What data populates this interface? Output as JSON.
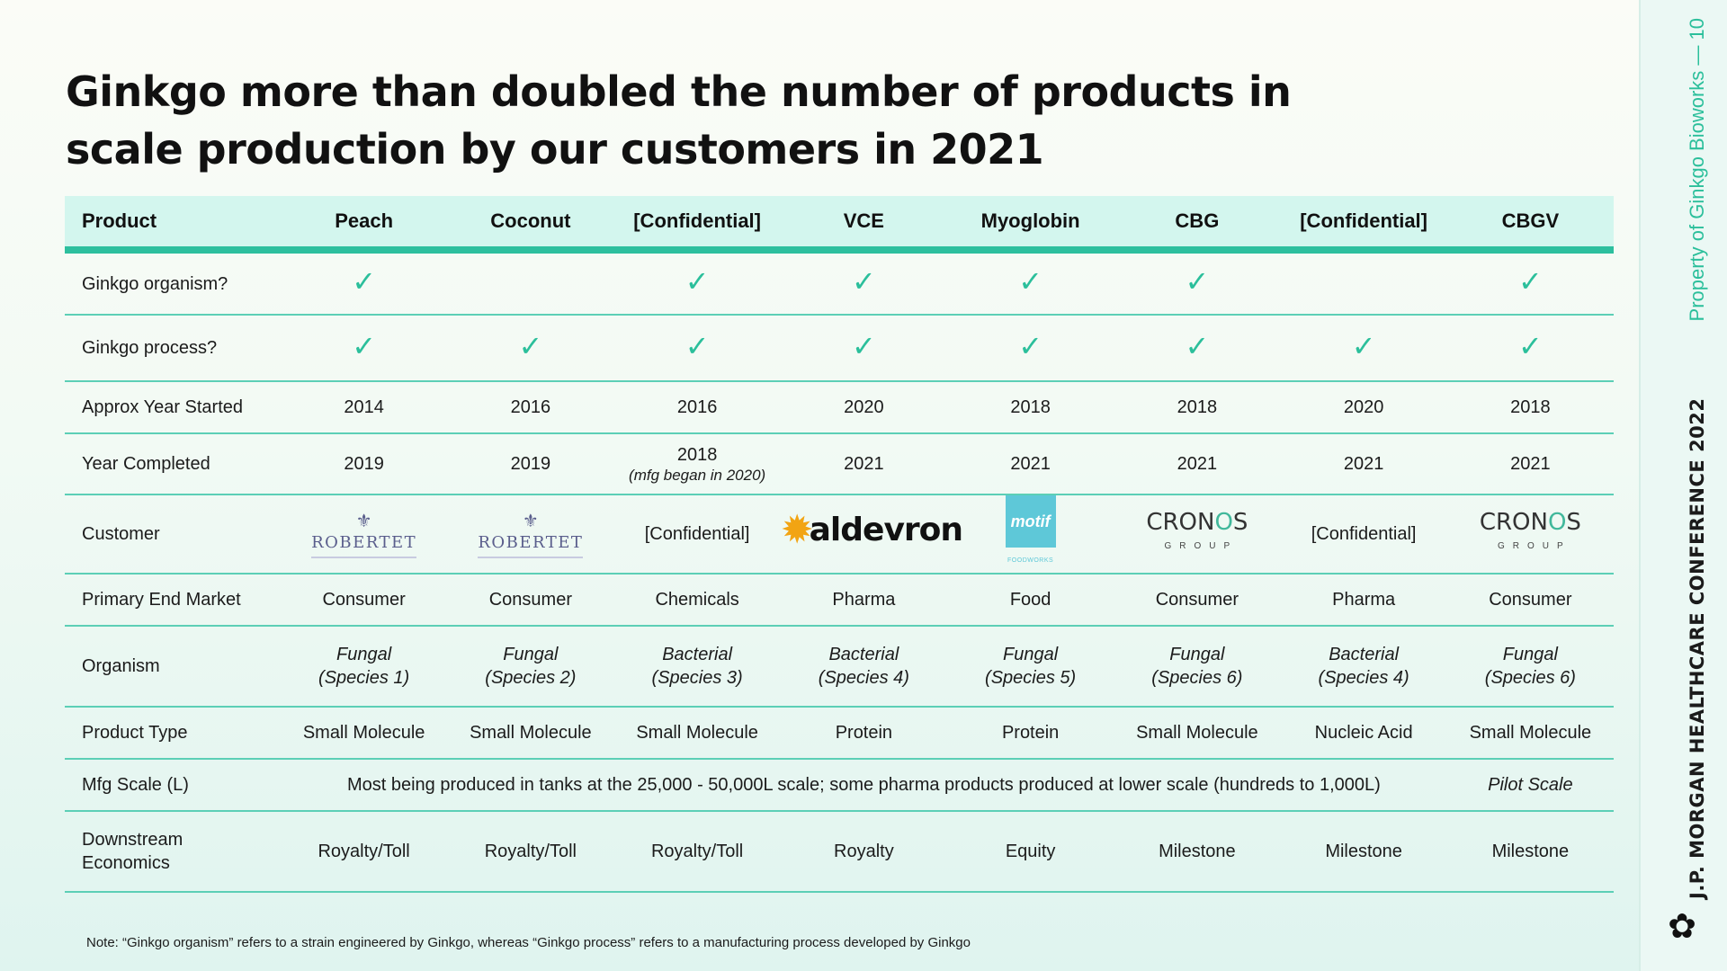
{
  "slide": {
    "title_line1": "Ginkgo more than doubled the number of products in",
    "title_line2": "scale production by our customers in 2021",
    "note": "Note: “Ginkgo organism” refers to a strain engineered by Ginkgo, whereas “Ginkgo process” refers to a manufacturing process developed by Ginkgo",
    "side_conference": "J.P. MORGAN HEALTHCARE CONFERENCE 2022",
    "side_property": "Property of Ginkgo Bioworks — 10",
    "check_glyph": "✓"
  },
  "table": {
    "header": {
      "label": "Product",
      "products": [
        "Peach",
        "Coconut",
        "[Confidential]",
        "VCE",
        "Myoglobin",
        "CBG",
        "[Confidential]",
        "CBGV"
      ]
    },
    "ginkgo_organism": {
      "label": "Ginkgo organism?",
      "checked": [
        true,
        false,
        true,
        true,
        true,
        true,
        false,
        true
      ]
    },
    "ginkgo_process": {
      "label": "Ginkgo process?",
      "checked": [
        true,
        true,
        true,
        true,
        true,
        true,
        true,
        true
      ]
    },
    "year_started": {
      "label": "Approx  Year Started",
      "values": [
        "2014",
        "2016",
        "2016",
        "2020",
        "2018",
        "2018",
        "2020",
        "2018"
      ]
    },
    "year_completed": {
      "label": "Year Completed",
      "values": [
        "2019",
        "2019",
        "2018",
        "2021",
        "2021",
        "2021",
        "2021",
        "2021"
      ],
      "notes": [
        "",
        "",
        "(mfg began in 2020)",
        "",
        "",
        "",
        "",
        ""
      ]
    },
    "customer": {
      "label": "Customer",
      "robertet_word": "ROBERTET",
      "robertet_crest": "⚜",
      "confidential": "[Confidential]",
      "aldevron_word": "aldevron",
      "aldevron_sun": "✹",
      "motif_word": "motif",
      "motif_sub": "FOODWORKS",
      "cronos_word_a": "CRON",
      "cronos_word_o": "O",
      "cronos_word_b": "S",
      "cronos_group": "GROUP"
    },
    "end_market": {
      "label": "Primary End Market",
      "values": [
        "Consumer",
        "Consumer",
        "Chemicals",
        "Pharma",
        "Food",
        "Consumer",
        "Pharma",
        "Consumer"
      ]
    },
    "organism": {
      "label": "Organism",
      "types": [
        "Fungal",
        "Fungal",
        "Bacterial",
        "Bacterial",
        "Fungal",
        "Fungal",
        "Bacterial",
        "Fungal"
      ],
      "species": [
        "(Species 1)",
        "(Species 2)",
        "(Species 3)",
        "(Species 4)",
        "(Species 5)",
        "(Species 6)",
        "(Species 4)",
        "(Species 6)"
      ]
    },
    "product_type": {
      "label": "Product Type",
      "values": [
        "Small Molecule",
        "Small Molecule",
        "Small Molecule",
        "Protein",
        "Protein",
        "Small Molecule",
        "Nucleic Acid",
        "Small Molecule"
      ]
    },
    "mfg_scale": {
      "label": "Mfg Scale (L)",
      "merged": "Most being produced in tanks at the 25,000 - 50,000L scale; some pharma products produced at lower scale (hundreds to 1,000L)",
      "last": "Pilot Scale"
    },
    "economics": {
      "label_line1": "Downstream",
      "label_line2": "Economics",
      "values": [
        "Royalty/Toll",
        "Royalty/Toll",
        "Royalty/Toll",
        "Royalty",
        "Equity",
        "Milestone",
        "Milestone",
        "Milestone"
      ]
    }
  },
  "colors": {
    "accent": "#2dbf9e",
    "header_bg": "#d3f6ee",
    "check": "#2bbf9b"
  }
}
